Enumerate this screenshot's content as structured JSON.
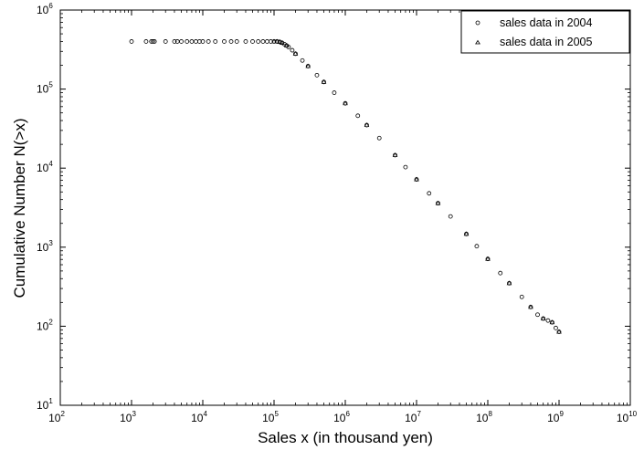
{
  "chart_data": {
    "type": "scatter",
    "xscale": "log",
    "yscale": "log",
    "xlim": [
      100,
      10000000000
    ],
    "ylim": [
      10,
      1000000
    ],
    "xlabel": "Sales x (in thousand yen)",
    "ylabel": "Cumulative Number N(>x)",
    "grid": false,
    "legend_position": "top-right",
    "x_ticks": [
      {
        "base": "10",
        "exp": "2"
      },
      {
        "base": "10",
        "exp": "3"
      },
      {
        "base": "10",
        "exp": "4"
      },
      {
        "base": "10",
        "exp": "5"
      },
      {
        "base": "10",
        "exp": "6"
      },
      {
        "base": "10",
        "exp": "7"
      },
      {
        "base": "10",
        "exp": "8"
      },
      {
        "base": "10",
        "exp": "9"
      },
      {
        "base": "10",
        "exp": "10"
      }
    ],
    "y_ticks": [
      {
        "base": "10",
        "exp": "1"
      },
      {
        "base": "10",
        "exp": "2"
      },
      {
        "base": "10",
        "exp": "3"
      },
      {
        "base": "10",
        "exp": "4"
      },
      {
        "base": "10",
        "exp": "5"
      },
      {
        "base": "10",
        "exp": "6"
      }
    ],
    "series": [
      {
        "name": "sales data in 2004",
        "marker": "circle",
        "x": [
          1000,
          1600,
          1900,
          2000,
          2100,
          3000,
          4000,
          4400,
          5000,
          6000,
          7000,
          8000,
          9000,
          10000,
          12000,
          15000,
          20000,
          25000,
          30000,
          40000,
          50000,
          60000,
          70000,
          80000,
          90000,
          100000,
          110000,
          120000,
          130000,
          140000,
          150000,
          160000,
          180000,
          200000,
          250000,
          300000,
          400000,
          500000,
          700000,
          1000000,
          1500000,
          2000000,
          3000000,
          5000000,
          7000000,
          10000000,
          15000000,
          20000000,
          30000000,
          50000000,
          70000000,
          100000000,
          150000000,
          200000000,
          300000000,
          400000000,
          500000000,
          600000000,
          700000000,
          800000000,
          900000000,
          1000000000
        ],
        "y": [
          400000,
          400000,
          400000,
          400000,
          400000,
          400000,
          400000,
          400000,
          400000,
          400000,
          400000,
          400000,
          400000,
          400000,
          400000,
          400000,
          400000,
          400000,
          400000,
          400000,
          400000,
          400000,
          400000,
          400000,
          400000,
          400000,
          400000,
          395000,
          385000,
          370000,
          355000,
          340000,
          310000,
          280000,
          230000,
          195000,
          150000,
          123000,
          90000,
          66000,
          46000,
          35000,
          24000,
          14600,
          10300,
          7200,
          4800,
          3600,
          2450,
          1470,
          1030,
          710,
          470,
          350,
          235,
          175,
          140,
          125,
          118,
          112,
          95,
          85
        ]
      },
      {
        "name": "sales data in 2005",
        "marker": "triangle",
        "x": [
          100000,
          110000,
          120000,
          130000,
          150000,
          200000,
          300000,
          500000,
          1000000,
          2000000,
          5000000,
          10000000,
          20000000,
          50000000,
          100000000,
          200000000,
          400000000,
          600000000,
          800000000,
          1000000000
        ],
        "y": [
          400000,
          400000,
          395000,
          385000,
          355000,
          280000,
          195000,
          123000,
          66000,
          35000,
          14600,
          7200,
          3600,
          1470,
          710,
          350,
          175,
          125,
          112,
          85
        ]
      }
    ]
  }
}
